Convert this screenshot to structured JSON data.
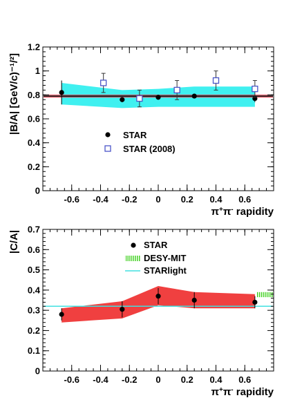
{
  "chart_data": [
    {
      "type": "scatter",
      "title": "",
      "xlabel_html": "π<sup>+</sup>π<sup>-</sup> rapidity",
      "xlabel": "π+π- rapidity",
      "ylabel": "|B/A| [GeV/c)⁻¹/²]",
      "xlim": [
        -0.8,
        0.8
      ],
      "ylim": [
        0,
        1.2
      ],
      "x_ticks": [
        "-0.6",
        "-0.4",
        "-0.2",
        "0",
        "0.2",
        "0.4",
        "0.6"
      ],
      "y_ticks": [
        "0",
        "0.2",
        "0.4",
        "0.6",
        "0.8",
        "1",
        "1.2"
      ],
      "legend_position": "middle-left",
      "series": [
        {
          "name": "STAR",
          "marker": "filled-circle",
          "points": [
            {
              "x": -0.67,
              "y": 0.82,
              "err": 0.1
            },
            {
              "x": -0.25,
              "y": 0.76,
              "err": 0.02
            },
            {
              "x": 0.0,
              "y": 0.78,
              "err": 0.02
            },
            {
              "x": 0.25,
              "y": 0.79,
              "err": 0.02
            },
            {
              "x": 0.67,
              "y": 0.77,
              "err": 0.03
            }
          ]
        },
        {
          "name": "STAR (2008)",
          "marker": "open-square",
          "color": "#4a55c8",
          "points": [
            {
              "x": -0.38,
              "y": 0.9,
              "err": 0.08
            },
            {
              "x": -0.13,
              "y": 0.77,
              "err": 0.07
            },
            {
              "x": 0.13,
              "y": 0.84,
              "err": 0.08
            },
            {
              "x": 0.4,
              "y": 0.92,
              "err": 0.08
            },
            {
              "x": 0.67,
              "y": 0.85,
              "err": 0.07
            }
          ]
        }
      ],
      "band": {
        "color": "#40f0f0",
        "x": [
          -0.67,
          -0.25,
          0.0,
          0.25,
          0.67
        ],
        "upper": [
          0.9,
          0.84,
          0.85,
          0.87,
          0.87
        ],
        "lower": [
          0.72,
          0.69,
          0.7,
          0.7,
          0.7
        ]
      },
      "fit_line": {
        "value": 0.79,
        "color": "#000000",
        "edge_color": "#e03040"
      }
    },
    {
      "type": "scatter",
      "title": "",
      "xlabel_html": "π<sup>+</sup>π<sup>-</sup> rapidity",
      "xlabel": "π+π- rapidity",
      "ylabel": "|C/A|",
      "xlim": [
        -0.8,
        0.8
      ],
      "ylim": [
        0,
        0.7
      ],
      "x_ticks": [
        "-0.6",
        "-0.4",
        "-0.2",
        "0",
        "0.2",
        "0.4",
        "0.6"
      ],
      "y_ticks": [
        "0",
        "0.1",
        "0.2",
        "0.3",
        "0.4",
        "0.5",
        "0.6",
        "0.7"
      ],
      "legend_position": "top-center",
      "series": [
        {
          "name": "STAR",
          "marker": "filled-circle",
          "points": [
            {
              "x": -0.67,
              "y": 0.28,
              "err": 0.03
            },
            {
              "x": -0.25,
              "y": 0.305,
              "err": 0.04
            },
            {
              "x": 0.0,
              "y": 0.37,
              "err": 0.04
            },
            {
              "x": 0.25,
              "y": 0.35,
              "err": 0.04
            },
            {
              "x": 0.67,
              "y": 0.34,
              "err": 0.03
            }
          ]
        }
      ],
      "band": {
        "color": "#f04040",
        "x": [
          -0.67,
          -0.25,
          0.0,
          0.25,
          0.67
        ],
        "upper": [
          0.31,
          0.345,
          0.42,
          0.39,
          0.38
        ],
        "lower": [
          0.24,
          0.26,
          0.325,
          0.31,
          0.31
        ]
      },
      "references": [
        {
          "name": "DESY-MIT",
          "style": "hatched-band",
          "color": "#40d020",
          "x_range": [
            0.68,
            0.8
          ],
          "y_range": [
            0.365,
            0.39
          ]
        },
        {
          "name": "STARlight",
          "style": "line",
          "color": "#40e0e0",
          "value": 0.32
        }
      ]
    }
  ]
}
